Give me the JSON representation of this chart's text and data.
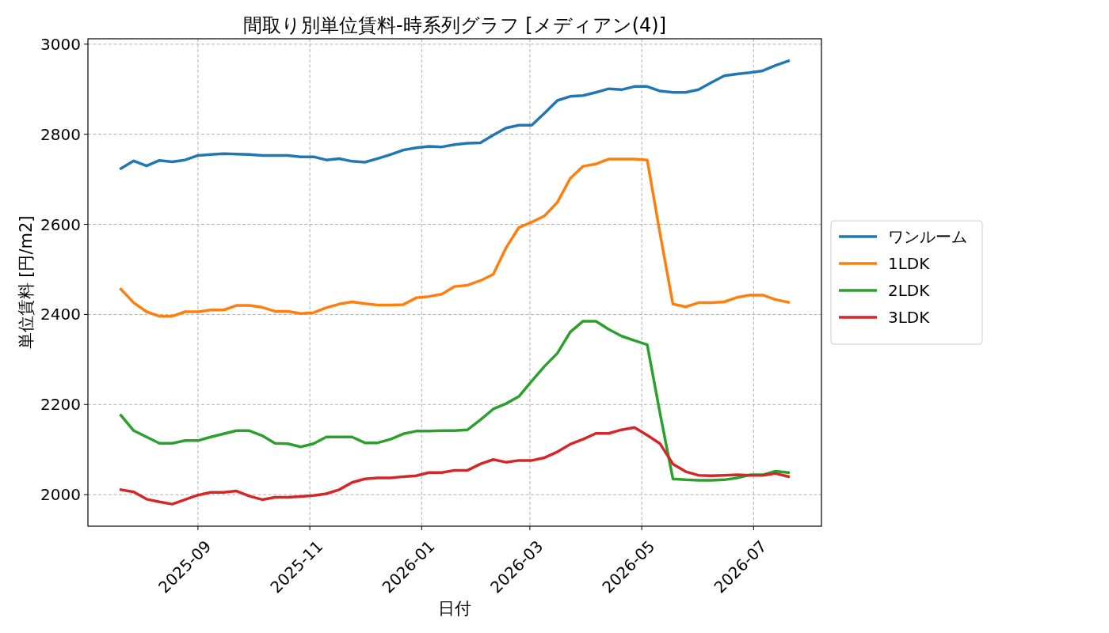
{
  "chart_data": {
    "type": "line",
    "title": "間取り別単位賃料-時系列グラフ [メディアン(4)]",
    "xlabel": "日付",
    "ylabel": "単位賃料 [円/m2]",
    "x": [
      "2025-07-21",
      "2025-07-28",
      "2025-08-04",
      "2025-08-11",
      "2025-08-18",
      "2025-08-25",
      "2025-09-01",
      "2025-09-08",
      "2025-09-15",
      "2025-09-22",
      "2025-09-29",
      "2025-10-06",
      "2025-10-13",
      "2025-10-20",
      "2025-10-27",
      "2025-11-03",
      "2025-11-10",
      "2025-11-17",
      "2025-11-24",
      "2025-12-01",
      "2025-12-08",
      "2025-12-15",
      "2025-12-22",
      "2025-12-29",
      "2026-01-05",
      "2026-01-12",
      "2026-01-19",
      "2026-01-26",
      "2026-02-02",
      "2026-02-09",
      "2026-02-16",
      "2026-02-23",
      "2026-03-02",
      "2026-03-09",
      "2026-03-16",
      "2026-03-23",
      "2026-03-30",
      "2026-04-06",
      "2026-04-13",
      "2026-04-20",
      "2026-04-27",
      "2026-05-04",
      "2026-05-11",
      "2026-05-18",
      "2026-05-25",
      "2026-06-01",
      "2026-06-08",
      "2026-06-15",
      "2026-06-22",
      "2026-06-29",
      "2026-07-06",
      "2026-07-13",
      "2026-07-20"
    ],
    "series": [
      {
        "name": "ワンルーム",
        "color": "#1f77b4",
        "values": [
          2724,
          2741,
          2730,
          2742,
          2739,
          2743,
          2753,
          2755,
          2757,
          2756,
          2755,
          2753,
          2753,
          2753,
          2750,
          2750,
          2743,
          2746,
          2740,
          2738,
          2746,
          2755,
          2765,
          2770,
          2773,
          2772,
          2777,
          2780,
          2781,
          2798,
          2814,
          2820,
          2820,
          2847,
          2875,
          2884,
          2886,
          2893,
          2901,
          2899,
          2906,
          2906,
          2896,
          2893,
          2893,
          2899,
          2915,
          2930,
          2934,
          2937,
          2941,
          2953,
          2963
        ]
      },
      {
        "name": "1LDK",
        "color": "#ff7f0e",
        "values": [
          2456,
          2426,
          2406,
          2396,
          2396,
          2406,
          2406,
          2410,
          2410,
          2420,
          2420,
          2416,
          2407,
          2407,
          2402,
          2404,
          2415,
          2423,
          2428,
          2424,
          2421,
          2421,
          2422,
          2437,
          2440,
          2445,
          2462,
          2465,
          2475,
          2489,
          2548,
          2593,
          2605,
          2619,
          2649,
          2702,
          2729,
          2734,
          2745,
          2745,
          2745,
          2743,
          2579,
          2423,
          2417,
          2426,
          2426,
          2428,
          2438,
          2443,
          2443,
          2433,
          2427
        ]
      },
      {
        "name": "2LDK",
        "color": "#2ca02c",
        "values": [
          2176,
          2142,
          2128,
          2114,
          2114,
          2120,
          2120,
          2128,
          2135,
          2142,
          2142,
          2131,
          2114,
          2113,
          2106,
          2113,
          2128,
          2128,
          2128,
          2115,
          2115,
          2123,
          2135,
          2141,
          2141,
          2142,
          2142,
          2144,
          2166,
          2190,
          2202,
          2218,
          2252,
          2285,
          2314,
          2361,
          2385,
          2385,
          2367,
          2352,
          2342,
          2333,
          2180,
          2035,
          2033,
          2032,
          2032,
          2033,
          2037,
          2044,
          2044,
          2052,
          2049
        ]
      },
      {
        "name": "3LDK",
        "color": "#d62728",
        "values": [
          2011,
          2006,
          1990,
          1984,
          1979,
          1989,
          1999,
          2005,
          2005,
          2008,
          1997,
          1989,
          1994,
          1994,
          1996,
          1998,
          2002,
          2011,
          2027,
          2035,
          2037,
          2037,
          2040,
          2042,
          2049,
          2049,
          2054,
          2054,
          2068,
          2078,
          2072,
          2076,
          2076,
          2082,
          2095,
          2112,
          2123,
          2136,
          2136,
          2144,
          2149,
          2132,
          2113,
          2068,
          2051,
          2043,
          2042,
          2043,
          2044,
          2043,
          2043,
          2047,
          2040
        ]
      }
    ],
    "xlim": [
      "2025-07-03",
      "2026-08-07"
    ],
    "ylim": [
      1930,
      3012
    ],
    "xticks": [
      "2025-09",
      "2025-11",
      "2026-01",
      "2026-03",
      "2026-05",
      "2026-07"
    ],
    "yticks": [
      2000,
      2200,
      2400,
      2600,
      2800,
      3000
    ],
    "grid": true,
    "legend": "right",
    "line_style": "solid",
    "marker": "none"
  }
}
